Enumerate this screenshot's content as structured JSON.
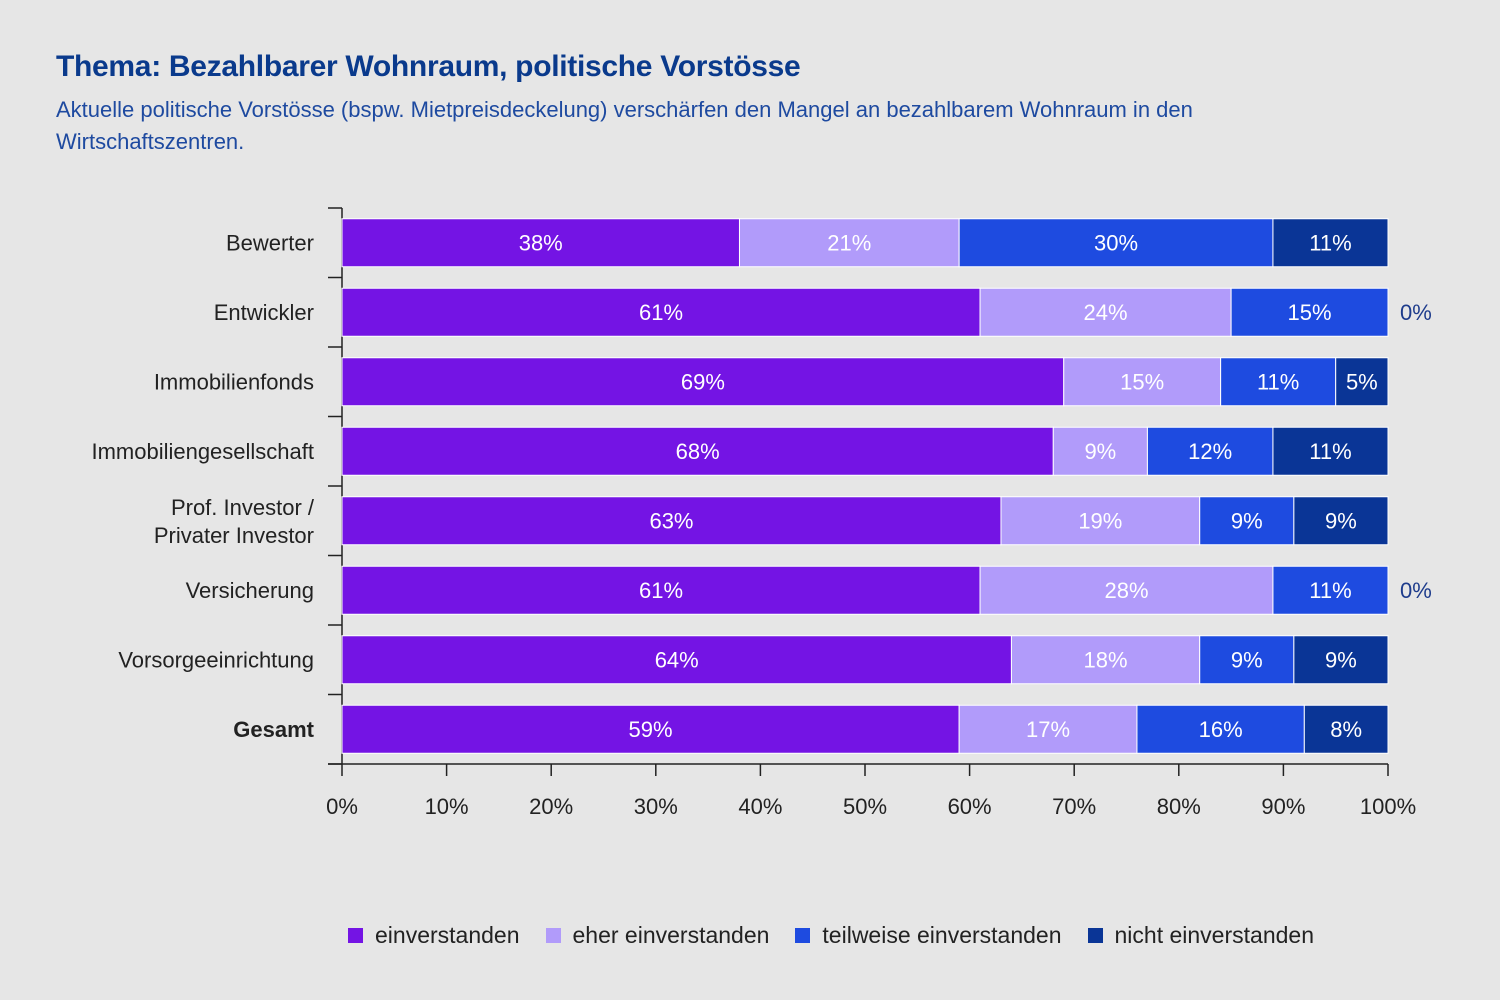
{
  "header": {
    "title": "Thema: Bezahlbarer Wohnraum, politische Vorstösse",
    "subtitle": "Aktuelle politische Vorstösse (bspw. Mietpreisdeckelung) verschärfen den Mangel an bezahlbarem Wohnraum in den Wirtschaftszentren."
  },
  "legend": {
    "items": [
      {
        "label": "einverstanden",
        "color": "#7414e4"
      },
      {
        "label": "eher einverstanden",
        "color": "#b19bfa"
      },
      {
        "label": "teilweise einverstanden",
        "color": "#1e4be0"
      },
      {
        "label": "nicht einverstanden",
        "color": "#0a3596"
      }
    ]
  },
  "chart_data": {
    "type": "bar",
    "orientation": "horizontal",
    "stacked": true,
    "categories": [
      "Bewerter",
      "Entwickler",
      "Immobilienfonds",
      "Immobiliengesellschaft",
      "Prof. Investor / Privater Investor",
      "Versicherung",
      "Vorsorgeeinrichtung",
      "Gesamt"
    ],
    "bold_categories": [
      "Gesamt"
    ],
    "series": [
      {
        "name": "einverstanden",
        "color": "#7414e4",
        "values": [
          38,
          61,
          69,
          68,
          63,
          61,
          64,
          59
        ]
      },
      {
        "name": "eher einverstanden",
        "color": "#b19bfa",
        "values": [
          21,
          24,
          15,
          9,
          19,
          28,
          18,
          17
        ]
      },
      {
        "name": "teilweise einverstanden",
        "color": "#1e4be0",
        "values": [
          30,
          15,
          11,
          12,
          9,
          11,
          9,
          16
        ]
      },
      {
        "name": "nicht einverstanden",
        "color": "#0a3596",
        "values": [
          11,
          0,
          5,
          11,
          9,
          0,
          9,
          8
        ]
      }
    ],
    "xlim": [
      0,
      100
    ],
    "xticks": [
      "0%",
      "10%",
      "20%",
      "30%",
      "40%",
      "50%",
      "60%",
      "70%",
      "80%",
      "90%",
      "100%"
    ],
    "value_suffix": "%",
    "legend_position": "bottom"
  }
}
